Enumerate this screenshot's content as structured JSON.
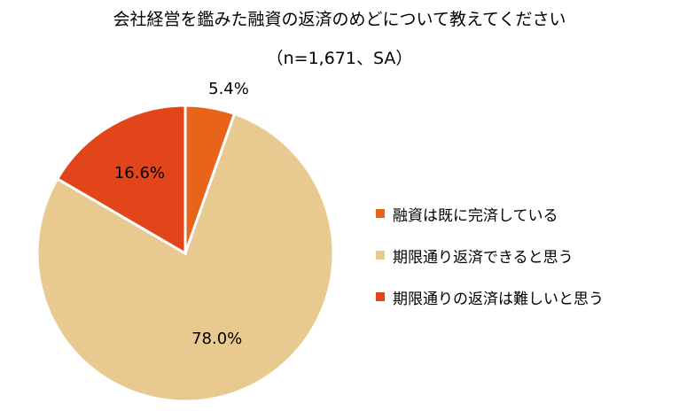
{
  "chart_data": {
    "type": "pie",
    "title": "会社経営を鑑みた融資の返済のめどについて教えてください",
    "subtitle": "（n=1,671、SA）",
    "categories": [
      "融資は既に完済している",
      "期限通り返済できると思う",
      "期限通りの返済は難しいと思う"
    ],
    "values": [
      5.4,
      78.0,
      16.6
    ],
    "value_labels": [
      "5.4%",
      "78.0%",
      "16.6%"
    ],
    "colors": [
      "#E8641B",
      "#E8C98F",
      "#E2451A"
    ],
    "legend_position": "right"
  }
}
